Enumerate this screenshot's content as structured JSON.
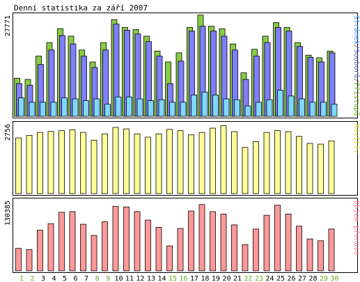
{
  "chart_data": {
    "type": "bar",
    "title": "Denní statistika za září 2007",
    "categories": [
      "1",
      "2",
      "3",
      "4",
      "5",
      "6",
      "7",
      "8",
      "9",
      "10",
      "11",
      "12",
      "13",
      "14",
      "15",
      "16",
      "17",
      "18",
      "19",
      "20",
      "21",
      "22",
      "23",
      "24",
      "25",
      "26",
      "27",
      "28",
      "29",
      "30"
    ],
    "weekend_days": [
      "1",
      "2",
      "8",
      "9",
      "15",
      "16",
      "22",
      "23",
      "29",
      "30"
    ],
    "panels": [
      {
        "id": "requests",
        "ymax_label": "27771",
        "ymax": 27771,
        "side_labels": [
          {
            "text": "Stránek",
            "color": "#3399ff"
          },
          {
            "text": "/",
            "color": "#555555"
          },
          {
            "text": "Souborů",
            "color": "#6666cc"
          },
          {
            "text": "/",
            "color": "#555555"
          },
          {
            "text": "Přístupů",
            "color": "#66aa22"
          }
        ],
        "series": [
          {
            "name": "Přístupů",
            "color": "#88cc44",
            "values": [
              10650,
              10310,
              16760,
              20510,
              24380,
              22290,
              18460,
              15150,
              20510,
              26880,
              24720,
              24110,
              22290,
              18170,
              15150,
              17670,
              24720,
              28140,
              25040,
              24350,
              20140,
              12140,
              18660,
              22290,
              26040,
              24720,
              20510,
              17030,
              16300,
              18170
            ]
          },
          {
            "name": "Souborů",
            "color": "#7f7fff",
            "values": [
              9140,
              8690,
              14430,
              18460,
              22440,
              20140,
              16760,
              13640,
              18460,
              25640,
              23930,
              22880,
              20800,
              16760,
              9140,
              15370,
              23690,
              25040,
              23690,
              22290,
              18460,
              10310,
              16760,
              20510,
              24720,
              23690,
              19440,
              16440,
              15150,
              17670
            ]
          },
          {
            "name": "Stránek",
            "color": "#7fd7ff",
            "values": [
              5200,
              3990,
              3990,
              3990,
              5200,
              4910,
              4420,
              4910,
              3440,
              5450,
              5450,
              4910,
              4420,
              4680,
              3990,
              3990,
              6000,
              6810,
              6000,
              4910,
              4680,
              2960,
              3990,
              4680,
              7340,
              5720,
              4910,
              3990,
              3990,
              3440
            ]
          }
        ]
      },
      {
        "id": "visits",
        "ymax_label": "2756",
        "ymax": 2756,
        "side_labels": [
          {
            "text": "Návštěv",
            "color": "#dddd55"
          }
        ],
        "series": [
          {
            "name": "Návštěv",
            "color": "#ffff99",
            "values": [
              2240,
              2340,
              2460,
              2500,
              2530,
              2560,
              2460,
              2150,
              2400,
              2660,
              2600,
              2400,
              2270,
              2400,
              2580,
              2530,
              2360,
              2460,
              2630,
              2730,
              2490,
              1860,
              2090,
              2460,
              2530,
              2490,
              2300,
              2020,
              1990,
              2120
            ]
          }
        ]
      },
      {
        "id": "traffic",
        "ymax_label": "130385",
        "ymax": 130385,
        "side_labels": [
          {
            "text": "Objem přenosu",
            "color": "#ff7788"
          }
        ],
        "series": [
          {
            "name": "Objem přenosu",
            "color": "#ff9999",
            "values": [
              42840,
              40610,
              76790,
              89080,
              110410,
              111580,
              87920,
              67110,
              92460,
              121550,
              120420,
              111580,
              95800,
              82210,
              47390,
              80160,
              112700,
              124910,
              111580,
              107090,
              86740,
              49650,
              78980,
              104840,
              123750,
              107090,
              84460,
              60410,
              56970,
              79010
            ]
          }
        ]
      }
    ]
  }
}
